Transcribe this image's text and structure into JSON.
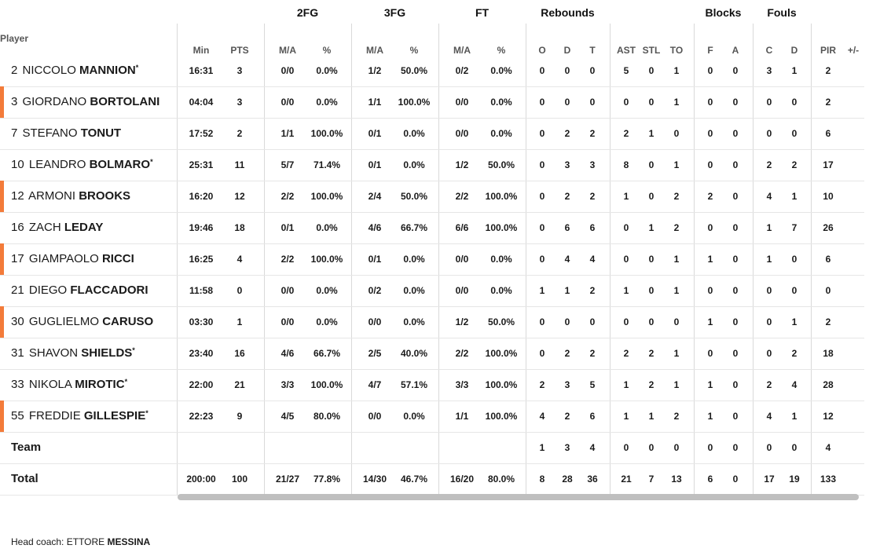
{
  "groups": {
    "fg2": "2FG",
    "fg3": "3FG",
    "ft": "FT",
    "rebounds": "Rebounds",
    "blocks": "Blocks",
    "fouls": "Fouls"
  },
  "columns": {
    "player": "Player",
    "min": "Min",
    "pts": "PTS",
    "fg2_ma": "M/A",
    "fg2_pct": "%",
    "fg3_ma": "M/A",
    "fg3_pct": "%",
    "ft_ma": "M/A",
    "ft_pct": "%",
    "reb_o": "O",
    "reb_d": "D",
    "reb_t": "T",
    "ast": "AST",
    "stl": "STL",
    "to": "TO",
    "blk_f": "F",
    "blk_a": "A",
    "foul_c": "C",
    "foul_d": "D",
    "pir": "PIR",
    "pm": "+/-"
  },
  "players": [
    {
      "number": "2",
      "first": "NICCOLO",
      "last": "MANNION",
      "starter": true,
      "sub": false,
      "min": "16:31",
      "pts": "3",
      "fg2_ma": "0/0",
      "fg2_pct": "0.0%",
      "fg3_ma": "1/2",
      "fg3_pct": "50.0%",
      "ft_ma": "0/2",
      "ft_pct": "0.0%",
      "reb_o": "0",
      "reb_d": "0",
      "reb_t": "0",
      "ast": "5",
      "stl": "0",
      "to": "1",
      "blk_f": "0",
      "blk_a": "0",
      "foul_c": "3",
      "foul_d": "1",
      "pir": "2"
    },
    {
      "number": "3",
      "first": "GIORDANO",
      "last": "BORTOLANI",
      "starter": false,
      "sub": true,
      "min": "04:04",
      "pts": "3",
      "fg2_ma": "0/0",
      "fg2_pct": "0.0%",
      "fg3_ma": "1/1",
      "fg3_pct": "100.0%",
      "ft_ma": "0/0",
      "ft_pct": "0.0%",
      "reb_o": "0",
      "reb_d": "0",
      "reb_t": "0",
      "ast": "0",
      "stl": "0",
      "to": "1",
      "blk_f": "0",
      "blk_a": "0",
      "foul_c": "0",
      "foul_d": "0",
      "pir": "2"
    },
    {
      "number": "7",
      "first": "STEFANO",
      "last": "TONUT",
      "starter": false,
      "sub": false,
      "min": "17:52",
      "pts": "2",
      "fg2_ma": "1/1",
      "fg2_pct": "100.0%",
      "fg3_ma": "0/1",
      "fg3_pct": "0.0%",
      "ft_ma": "0/0",
      "ft_pct": "0.0%",
      "reb_o": "0",
      "reb_d": "2",
      "reb_t": "2",
      "ast": "2",
      "stl": "1",
      "to": "0",
      "blk_f": "0",
      "blk_a": "0",
      "foul_c": "0",
      "foul_d": "0",
      "pir": "6"
    },
    {
      "number": "10",
      "first": "LEANDRO",
      "last": "BOLMARO",
      "starter": true,
      "sub": false,
      "min": "25:31",
      "pts": "11",
      "fg2_ma": "5/7",
      "fg2_pct": "71.4%",
      "fg3_ma": "0/1",
      "fg3_pct": "0.0%",
      "ft_ma": "1/2",
      "ft_pct": "50.0%",
      "reb_o": "0",
      "reb_d": "3",
      "reb_t": "3",
      "ast": "8",
      "stl": "0",
      "to": "1",
      "blk_f": "0",
      "blk_a": "0",
      "foul_c": "2",
      "foul_d": "2",
      "pir": "17"
    },
    {
      "number": "12",
      "first": "ARMONI",
      "last": "BROOKS",
      "starter": false,
      "sub": true,
      "min": "16:20",
      "pts": "12",
      "fg2_ma": "2/2",
      "fg2_pct": "100.0%",
      "fg3_ma": "2/4",
      "fg3_pct": "50.0%",
      "ft_ma": "2/2",
      "ft_pct": "100.0%",
      "reb_o": "0",
      "reb_d": "2",
      "reb_t": "2",
      "ast": "1",
      "stl": "0",
      "to": "2",
      "blk_f": "2",
      "blk_a": "0",
      "foul_c": "4",
      "foul_d": "1",
      "pir": "10"
    },
    {
      "number": "16",
      "first": "ZACH",
      "last": "LEDAY",
      "starter": false,
      "sub": false,
      "min": "19:46",
      "pts": "18",
      "fg2_ma": "0/1",
      "fg2_pct": "0.0%",
      "fg3_ma": "4/6",
      "fg3_pct": "66.7%",
      "ft_ma": "6/6",
      "ft_pct": "100.0%",
      "reb_o": "0",
      "reb_d": "6",
      "reb_t": "6",
      "ast": "0",
      "stl": "1",
      "to": "2",
      "blk_f": "0",
      "blk_a": "0",
      "foul_c": "1",
      "foul_d": "7",
      "pir": "26"
    },
    {
      "number": "17",
      "first": "GIAMPAOLO",
      "last": "RICCI",
      "starter": false,
      "sub": true,
      "min": "16:25",
      "pts": "4",
      "fg2_ma": "2/2",
      "fg2_pct": "100.0%",
      "fg3_ma": "0/1",
      "fg3_pct": "0.0%",
      "ft_ma": "0/0",
      "ft_pct": "0.0%",
      "reb_o": "0",
      "reb_d": "4",
      "reb_t": "4",
      "ast": "0",
      "stl": "0",
      "to": "1",
      "blk_f": "1",
      "blk_a": "0",
      "foul_c": "1",
      "foul_d": "0",
      "pir": "6"
    },
    {
      "number": "21",
      "first": "DIEGO",
      "last": "FLACCADORI",
      "starter": false,
      "sub": false,
      "min": "11:58",
      "pts": "0",
      "fg2_ma": "0/0",
      "fg2_pct": "0.0%",
      "fg3_ma": "0/2",
      "fg3_pct": "0.0%",
      "ft_ma": "0/0",
      "ft_pct": "0.0%",
      "reb_o": "1",
      "reb_d": "1",
      "reb_t": "2",
      "ast": "1",
      "stl": "0",
      "to": "1",
      "blk_f": "0",
      "blk_a": "0",
      "foul_c": "0",
      "foul_d": "0",
      "pir": "0"
    },
    {
      "number": "30",
      "first": "GUGLIELMO",
      "last": "CARUSO",
      "starter": false,
      "sub": true,
      "min": "03:30",
      "pts": "1",
      "fg2_ma": "0/0",
      "fg2_pct": "0.0%",
      "fg3_ma": "0/0",
      "fg3_pct": "0.0%",
      "ft_ma": "1/2",
      "ft_pct": "50.0%",
      "reb_o": "0",
      "reb_d": "0",
      "reb_t": "0",
      "ast": "0",
      "stl": "0",
      "to": "0",
      "blk_f": "1",
      "blk_a": "0",
      "foul_c": "0",
      "foul_d": "1",
      "pir": "2"
    },
    {
      "number": "31",
      "first": "SHAVON",
      "last": "SHIELDS",
      "starter": true,
      "sub": false,
      "min": "23:40",
      "pts": "16",
      "fg2_ma": "4/6",
      "fg2_pct": "66.7%",
      "fg3_ma": "2/5",
      "fg3_pct": "40.0%",
      "ft_ma": "2/2",
      "ft_pct": "100.0%",
      "reb_o": "0",
      "reb_d": "2",
      "reb_t": "2",
      "ast": "2",
      "stl": "2",
      "to": "1",
      "blk_f": "0",
      "blk_a": "0",
      "foul_c": "0",
      "foul_d": "2",
      "pir": "18"
    },
    {
      "number": "33",
      "first": "NIKOLA",
      "last": "MIROTIC",
      "starter": true,
      "sub": false,
      "min": "22:00",
      "pts": "21",
      "fg2_ma": "3/3",
      "fg2_pct": "100.0%",
      "fg3_ma": "4/7",
      "fg3_pct": "57.1%",
      "ft_ma": "3/3",
      "ft_pct": "100.0%",
      "reb_o": "2",
      "reb_d": "3",
      "reb_t": "5",
      "ast": "1",
      "stl": "2",
      "to": "1",
      "blk_f": "1",
      "blk_a": "0",
      "foul_c": "2",
      "foul_d": "4",
      "pir": "28"
    },
    {
      "number": "55",
      "first": "FREDDIE",
      "last": "GILLESPIE",
      "starter": true,
      "sub": true,
      "min": "22:23",
      "pts": "9",
      "fg2_ma": "4/5",
      "fg2_pct": "80.0%",
      "fg3_ma": "0/0",
      "fg3_pct": "0.0%",
      "ft_ma": "1/1",
      "ft_pct": "100.0%",
      "reb_o": "4",
      "reb_d": "2",
      "reb_t": "6",
      "ast": "1",
      "stl": "1",
      "to": "2",
      "blk_f": "1",
      "blk_a": "0",
      "foul_c": "4",
      "foul_d": "1",
      "pir": "12"
    }
  ],
  "team": {
    "label": "Team",
    "min": "",
    "pts": "",
    "fg2_ma": "",
    "fg2_pct": "",
    "fg3_ma": "",
    "fg3_pct": "",
    "ft_ma": "",
    "ft_pct": "",
    "reb_o": "1",
    "reb_d": "3",
    "reb_t": "4",
    "ast": "0",
    "stl": "0",
    "to": "0",
    "blk_f": "0",
    "blk_a": "0",
    "foul_c": "0",
    "foul_d": "0",
    "pir": "4"
  },
  "total": {
    "label": "Total",
    "min": "200:00",
    "pts": "100",
    "fg2_ma": "21/27",
    "fg2_pct": "77.8%",
    "fg3_ma": "14/30",
    "fg3_pct": "46.7%",
    "ft_ma": "16/20",
    "ft_pct": "80.0%",
    "reb_o": "8",
    "reb_d": "28",
    "reb_t": "36",
    "ast": "21",
    "stl": "7",
    "to": "13",
    "blk_f": "6",
    "blk_a": "0",
    "foul_c": "17",
    "foul_d": "19",
    "pir": "133"
  },
  "coach": {
    "label": "Head coach:",
    "first": "ETTORE",
    "last": "MESSINA"
  },
  "accent_color": "#f37b3a"
}
